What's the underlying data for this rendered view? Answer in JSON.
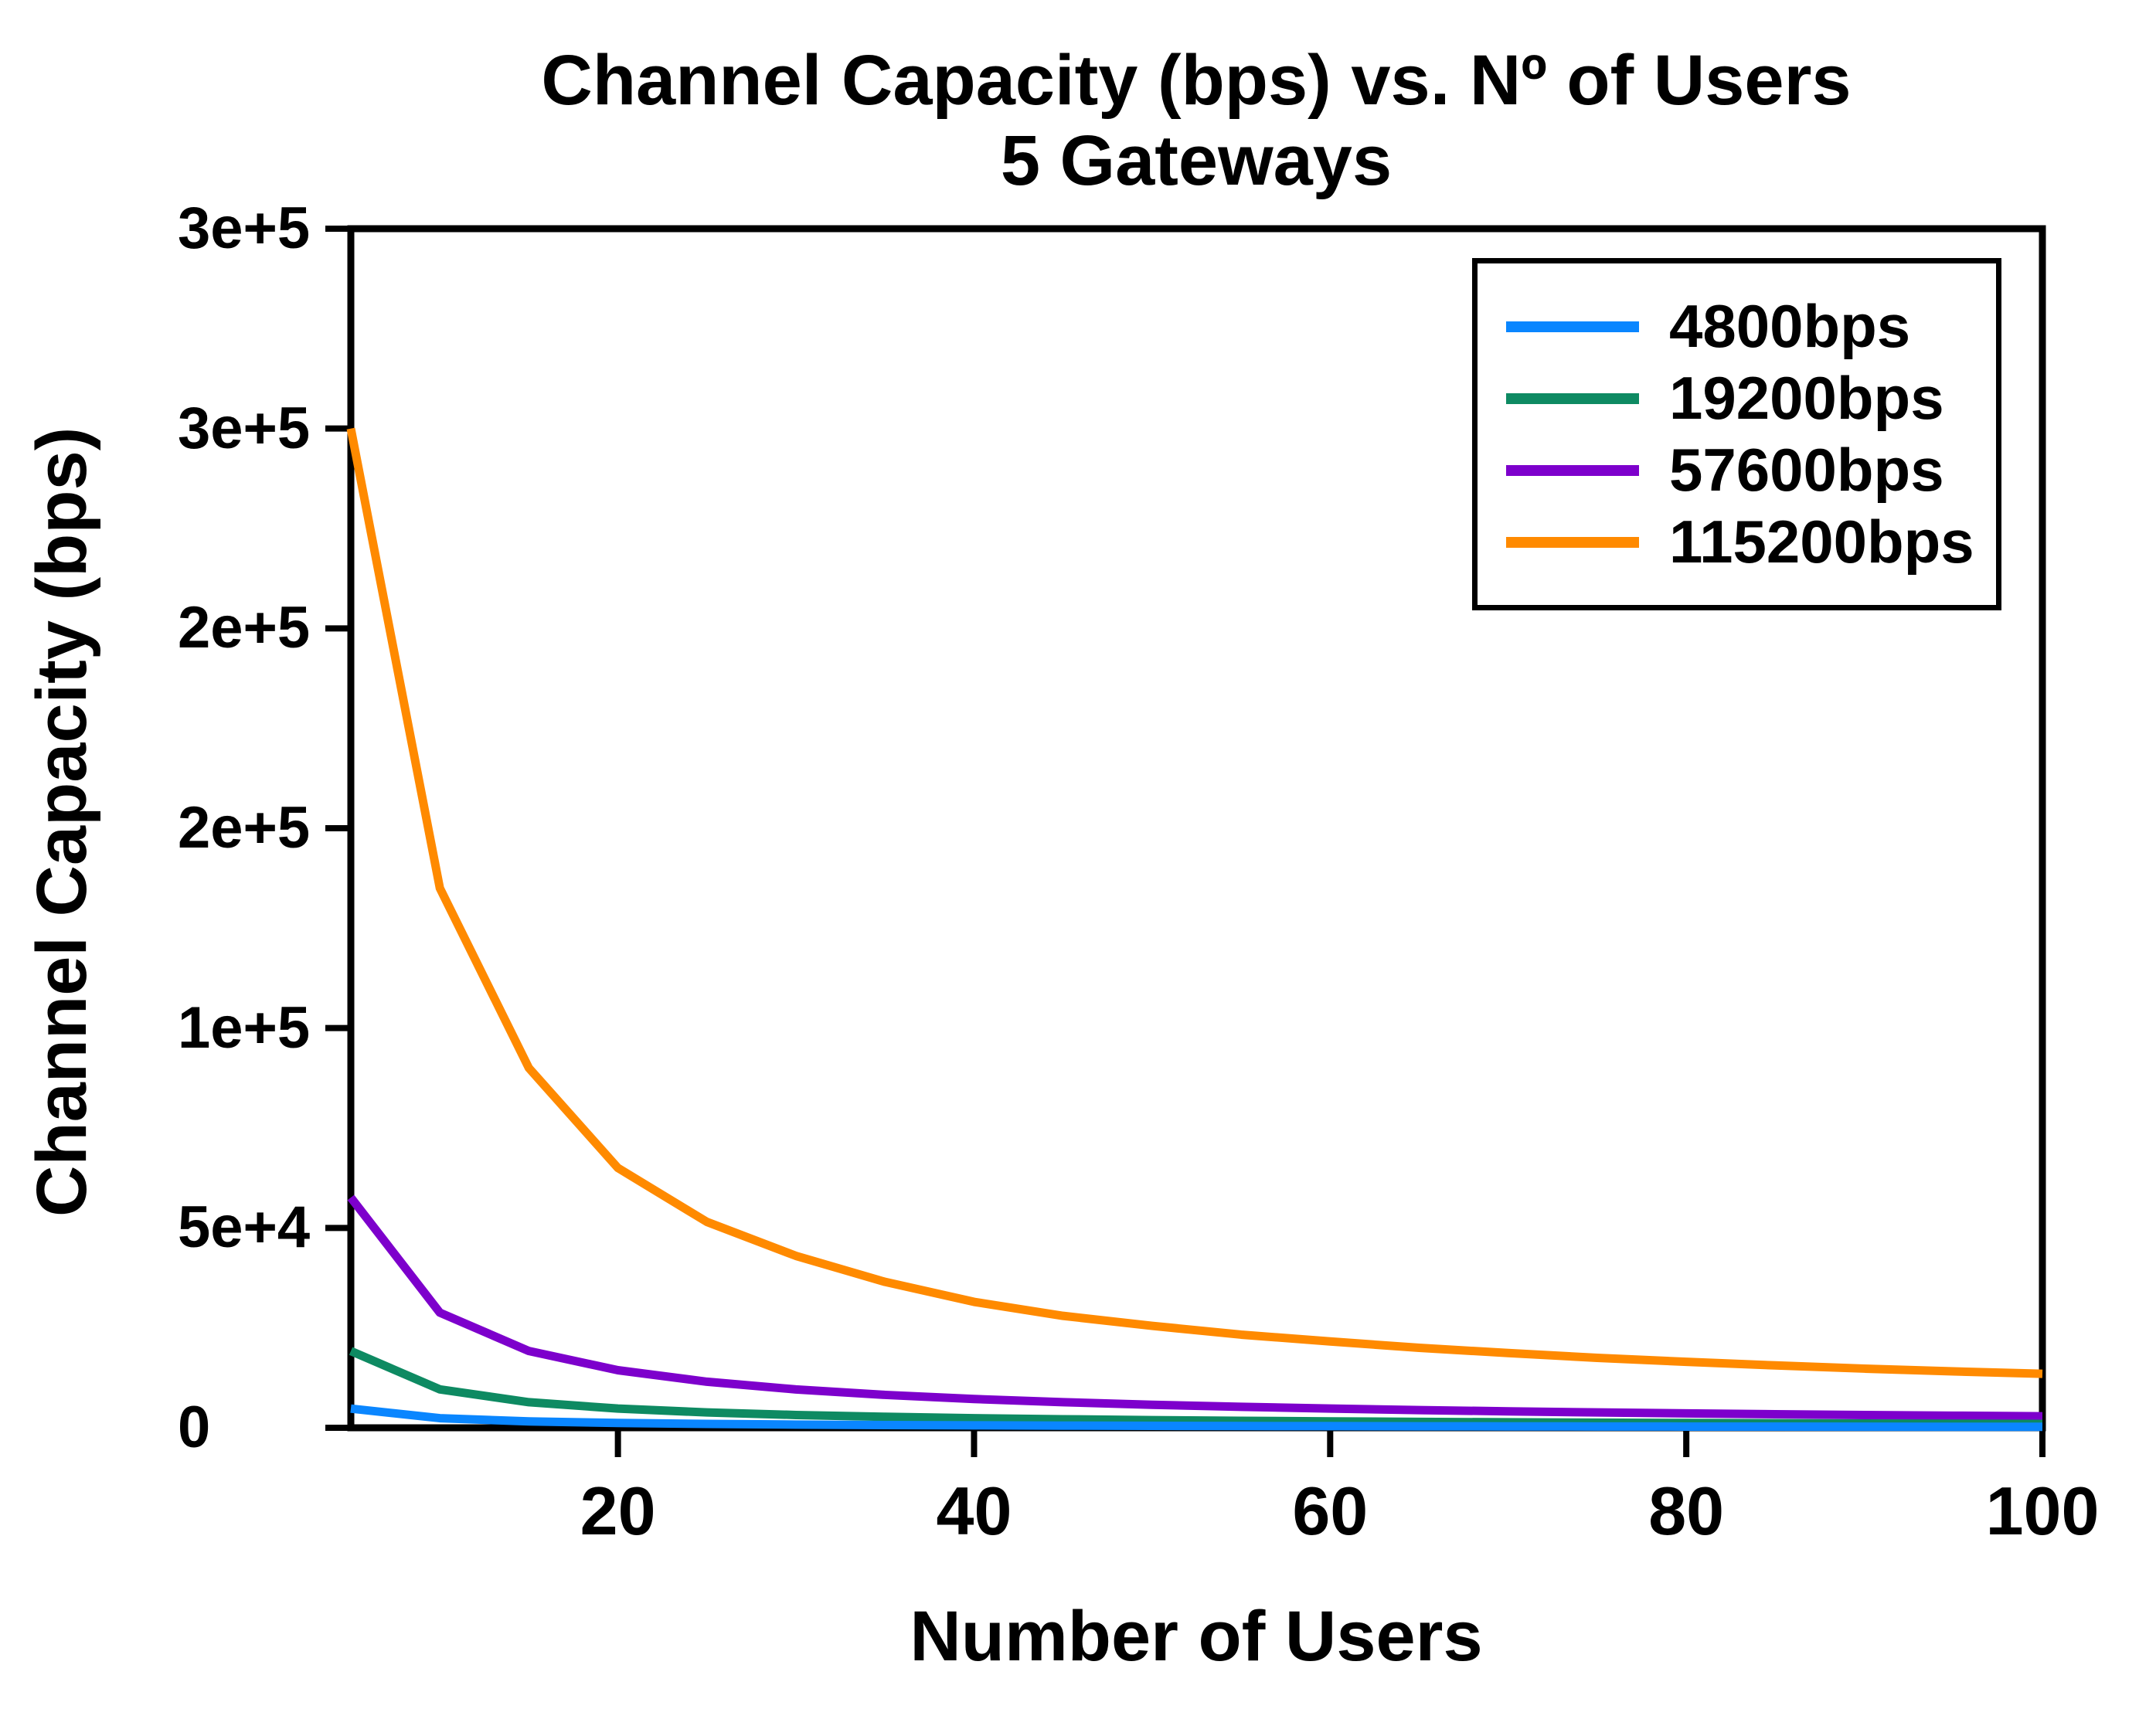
{
  "title": {
    "line1": "Channel Capacity (bps) vs. Nº of Users",
    "line2": "5 Gateways"
  },
  "y_axis": {
    "label": "Channel Capacity (bps)",
    "range": [
      0,
      300000
    ],
    "ticks": [
      {
        "value": 300000,
        "label": "3e+5"
      },
      {
        "value": 250000,
        "label": "3e+5"
      },
      {
        "value": 200000,
        "label": "2e+5"
      },
      {
        "value": 150000,
        "label": "2e+5"
      },
      {
        "value": 100000,
        "label": "1e+5"
      },
      {
        "value": 50000,
        "label": "5e+4"
      },
      {
        "value": 0,
        "label": "0"
      }
    ]
  },
  "x_axis": {
    "label": "Number of Users",
    "range": [
      5,
      100
    ],
    "ticks": [
      {
        "value": 20,
        "label": "20"
      },
      {
        "value": 40,
        "label": "40"
      },
      {
        "value": 60,
        "label": "60"
      },
      {
        "value": 80,
        "label": "80"
      },
      {
        "value": 100,
        "label": "100"
      }
    ]
  },
  "legend": {
    "position": "upper right",
    "items": [
      {
        "label": "4800bps",
        "color": "#0A86FF"
      },
      {
        "label": "19200bps",
        "color": "#0E8A62"
      },
      {
        "label": "57600bps",
        "color": "#7D00CC"
      },
      {
        "label": "115200bps",
        "color": "#FF8A00"
      }
    ]
  },
  "chart_data": {
    "type": "line",
    "title": "Channel Capacity (bps) vs. Nº of Users — 5 Gateways",
    "xlabel": "Number of Users",
    "ylabel": "Channel Capacity (bps)",
    "xlim": [
      5,
      100
    ],
    "ylim": [
      0,
      300000
    ],
    "grid": false,
    "legend_position": "upper right",
    "x": [
      5,
      10,
      15,
      20,
      25,
      30,
      35,
      40,
      45,
      50,
      55,
      60,
      65,
      70,
      75,
      80,
      85,
      90,
      95,
      100
    ],
    "series": [
      {
        "name": "4800bps",
        "color": "#0A86FF",
        "values": [
          4800,
          2400,
          1600,
          1200,
          960,
          800,
          686,
          600,
          533,
          480,
          436,
          400,
          369,
          343,
          320,
          300,
          282,
          267,
          253,
          240
        ]
      },
      {
        "name": "19200bps",
        "color": "#0E8A62",
        "values": [
          19200,
          9600,
          6400,
          4800,
          3840,
          3200,
          2743,
          2400,
          2133,
          1920,
          1745,
          1600,
          1477,
          1371,
          1280,
          1200,
          1129,
          1067,
          1011,
          960
        ]
      },
      {
        "name": "57600bps",
        "color": "#7D00CC",
        "values": [
          57600,
          28800,
          19200,
          14400,
          11520,
          9600,
          8229,
          7200,
          6400,
          5760,
          5236,
          4800,
          4431,
          4114,
          3840,
          3600,
          3388,
          3200,
          3032,
          2880
        ]
      },
      {
        "name": "115200bps",
        "color": "#FF8A00",
        "values": [
          250000,
          135000,
          90000,
          65000,
          51500,
          43000,
          36500,
          31500,
          28000,
          25500,
          23300,
          21600,
          20000,
          18700,
          17500,
          16500,
          15600,
          14800,
          14100,
          13500
        ]
      }
    ]
  }
}
